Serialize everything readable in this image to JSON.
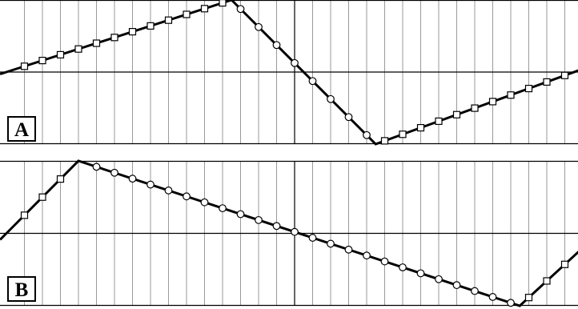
{
  "style": {
    "trace_color": "#000000",
    "grid_color": "#9a9a9a",
    "axis_color": "#000000",
    "marker_fill": "#ffffff"
  },
  "chart_data": [
    {
      "type": "line",
      "label": "A",
      "xlim": [
        0,
        32
      ],
      "ylim": [
        -1,
        1
      ],
      "grid": true,
      "series": [
        {
          "x": [
            0,
            12.5,
            20.5,
            32
          ],
          "y": [
            0,
            1,
            -1,
            0.0435
          ]
        }
      ],
      "markers": {
        "square_x": [
          1,
          2,
          3,
          4,
          5,
          6,
          7,
          8,
          9,
          10,
          11,
          12,
          21,
          22,
          23,
          24,
          25,
          26,
          27,
          28,
          29,
          30,
          31,
          32
        ],
        "circle_x": [
          13,
          14,
          15,
          16,
          17,
          18,
          19,
          20
        ]
      }
    },
    {
      "type": "line",
      "label": "B",
      "xlim": [
        0,
        32
      ],
      "ylim": [
        -1,
        1
      ],
      "grid": true,
      "series": [
        {
          "x": [
            0,
            4,
            28.5,
            32
          ],
          "y": [
            0,
            1,
            -1,
            -0.2
          ]
        }
      ],
      "markers": {
        "square_x": [
          1,
          2,
          3,
          29,
          30,
          31,
          32
        ],
        "circle_x": [
          5,
          6,
          7,
          8,
          9,
          10,
          11,
          12,
          13,
          14,
          15,
          16,
          17,
          18,
          19,
          20,
          21,
          22,
          23,
          24,
          25,
          26,
          27,
          28
        ]
      }
    }
  ]
}
